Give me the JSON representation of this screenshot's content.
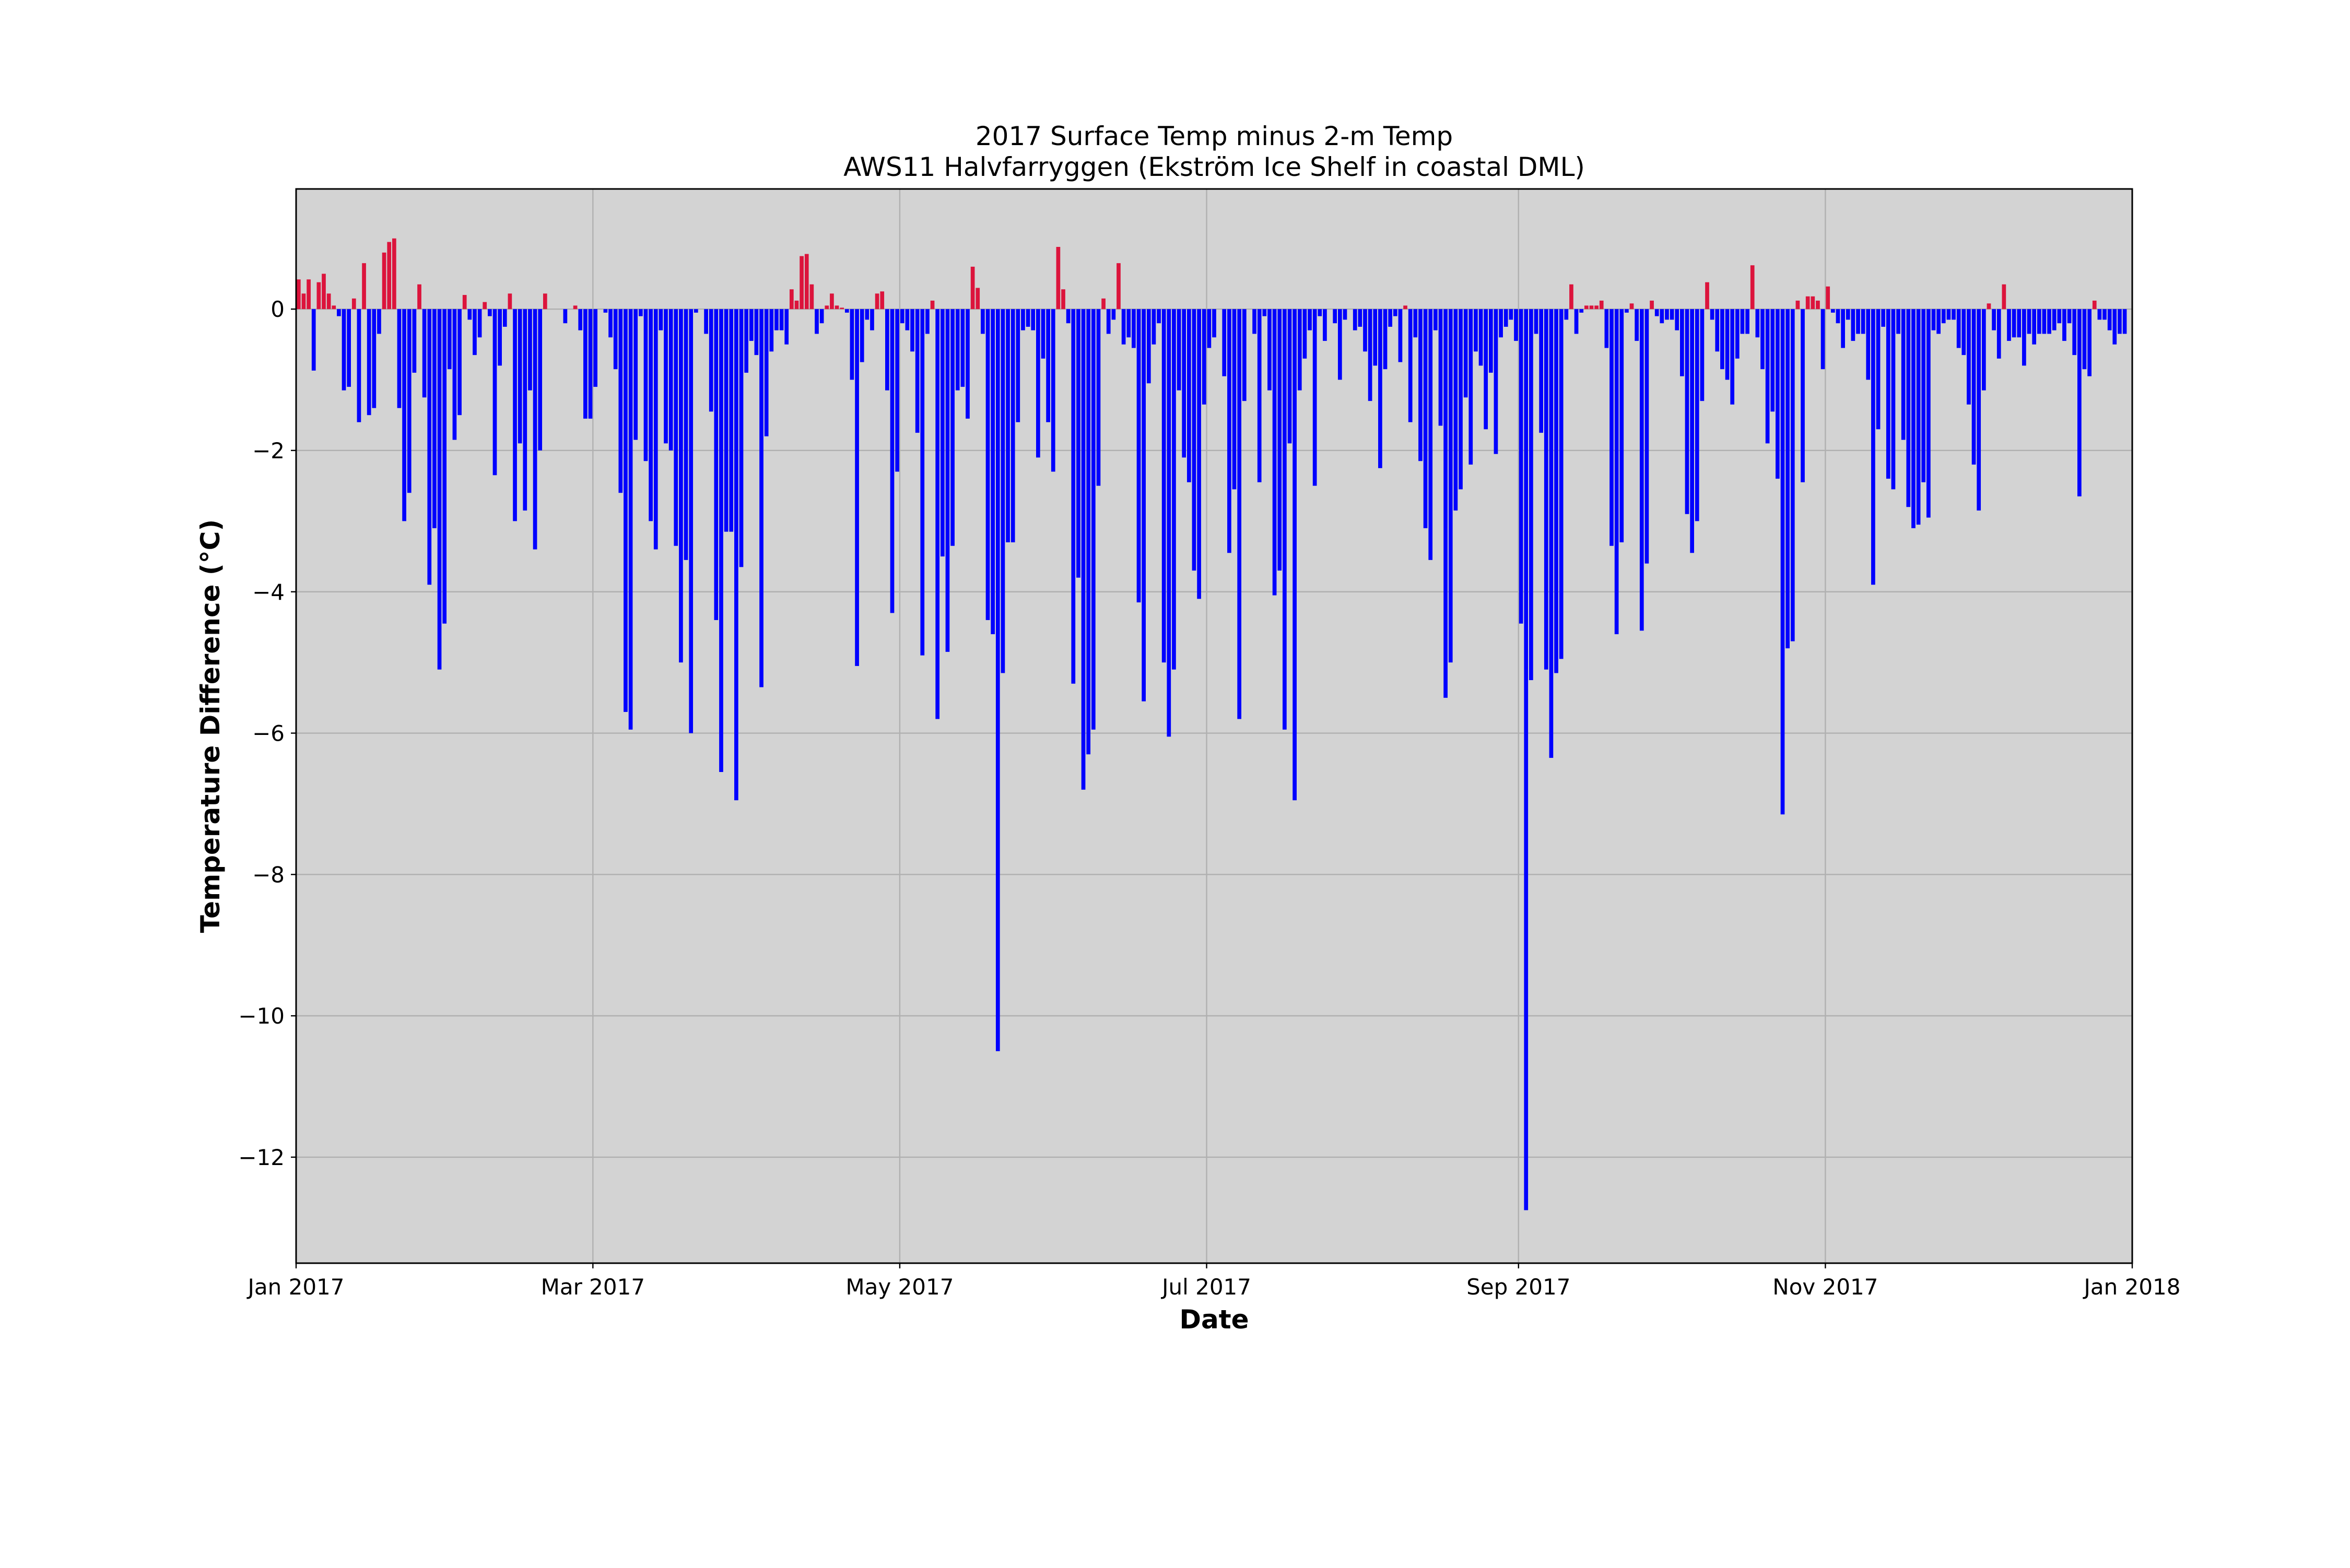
{
  "chart_data": {
    "type": "bar",
    "title": "2017 Surface Temp minus 2-m Temp",
    "subtitle": "AWS11 Halvfarryggen (Ekström Ice Shelf in coastal DML)",
    "xlabel": "Date",
    "ylabel": "Temperature Difference (°C)",
    "x_ticks": [
      {
        "date": "2017-01-01",
        "label": "Jan 2017"
      },
      {
        "date": "2017-03-01",
        "label": "Mar 2017"
      },
      {
        "date": "2017-05-01",
        "label": "May 2017"
      },
      {
        "date": "2017-07-01",
        "label": "Jul 2017"
      },
      {
        "date": "2017-09-01",
        "label": "Sep 2017"
      },
      {
        "date": "2017-11-01",
        "label": "Nov 2017"
      },
      {
        "date": "2018-01-01",
        "label": "Jan 2018"
      }
    ],
    "y_ticks": [
      {
        "value": 0,
        "label": "0"
      },
      {
        "value": -2,
        "label": "−2"
      },
      {
        "value": -4,
        "label": "−4"
      },
      {
        "value": -6,
        "label": "−6"
      },
      {
        "value": -8,
        "label": "−8"
      },
      {
        "value": -10,
        "label": "−10"
      },
      {
        "value": -12,
        "label": "−12"
      }
    ],
    "xlim": [
      "2017-01-01",
      "2018-01-01"
    ],
    "ylim": [
      -13.5,
      1.7
    ],
    "grid": true,
    "colors": {
      "positive": "#dc143c",
      "negative": "#0000ff",
      "plot_background": "#d3d3d3",
      "grid": "#b0b0b0"
    },
    "series": [
      {
        "start_date": "2017-01-01",
        "interval": "1 day",
        "values": [
          0.42,
          0.22,
          0.42,
          -0.87,
          0.38,
          0.5,
          0.22,
          0.05,
          -0.1,
          -1.15,
          -1.1,
          0.15,
          -1.6,
          0.65,
          -1.5,
          -1.4,
          -0.35,
          0.8,
          0.95,
          1.0,
          -1.4,
          -3.0,
          -2.6,
          -0.9,
          0.35,
          -1.25,
          -3.9,
          -3.1,
          -5.1,
          -4.45,
          -0.85,
          -1.85,
          -1.5,
          0.2,
          -0.15,
          -0.65,
          -0.4,
          0.1,
          -0.1,
          -2.35,
          -0.8,
          -0.25,
          0.22,
          -3.0,
          -1.9,
          -2.85,
          -1.15,
          -3.4,
          -2.0,
          0.22,
          0,
          0,
          0,
          -0.2,
          0,
          0.05,
          -0.3,
          -1.55,
          -1.55,
          -1.1,
          0,
          -0.05,
          -0.4,
          -0.85,
          -2.6,
          -5.7,
          -5.95,
          -1.85,
          -0.1,
          -2.15,
          -3.0,
          -3.4,
          -0.3,
          -1.9,
          -2.0,
          -3.35,
          -5.0,
          -3.55,
          -6.0,
          -0.05,
          0,
          -0.35,
          -1.45,
          -4.4,
          -6.55,
          -3.15,
          -3.15,
          -6.95,
          -3.65,
          -0.9,
          -0.45,
          -0.65,
          -5.35,
          -1.8,
          -0.6,
          -0.3,
          -0.3,
          -0.5,
          0.28,
          0.12,
          0.75,
          0.78,
          0.35,
          -0.35,
          -0.2,
          0.05,
          0.22,
          0.05,
          0.02,
          -0.05,
          -1.0,
          -5.05,
          -0.75,
          -0.15,
          -0.3,
          0.22,
          0.25,
          -1.15,
          -4.3,
          -2.3,
          -0.2,
          -0.3,
          -0.6,
          -1.75,
          -4.9,
          -0.35,
          0.12,
          -5.8,
          -3.5,
          -4.85,
          -3.35,
          -1.15,
          -1.1,
          -1.55,
          0.6,
          0.3,
          -0.35,
          -4.4,
          -4.6,
          -10.5,
          -5.15,
          -3.3,
          -3.3,
          -1.6,
          -0.3,
          -0.25,
          -0.3,
          -2.1,
          -0.7,
          -1.6,
          -2.3,
          0.88,
          0.28,
          -0.2,
          -5.3,
          -3.8,
          -6.8,
          -6.3,
          -5.95,
          -2.5,
          0.15,
          -0.35,
          -0.15,
          0.65,
          -0.5,
          -0.4,
          -0.55,
          -4.15,
          -5.55,
          -1.05,
          -0.5,
          -0.2,
          -5.0,
          -6.05,
          -5.1,
          -1.15,
          -2.1,
          -2.45,
          -3.7,
          -4.1,
          -1.35,
          -0.55,
          -0.4,
          0,
          -0.95,
          -3.45,
          -2.55,
          -5.8,
          -1.3,
          0,
          -0.35,
          -2.45,
          -0.1,
          -1.15,
          -4.05,
          -3.7,
          -5.95,
          -1.9,
          -6.95,
          -1.15,
          -0.7,
          -0.3,
          -2.5,
          -0.1,
          -0.45,
          0,
          -0.2,
          -1.0,
          -0.15,
          0,
          -0.3,
          -0.25,
          -0.6,
          -1.3,
          -0.8,
          -2.25,
          -0.85,
          -0.25,
          -0.1,
          -0.75,
          0.05,
          -1.6,
          -0.4,
          -2.15,
          -3.1,
          -3.55,
          -0.3,
          -1.65,
          -5.5,
          -5.0,
          -2.85,
          -2.55,
          -1.25,
          -2.2,
          -0.6,
          -0.8,
          -1.7,
          -0.9,
          -2.05,
          -0.4,
          -0.25,
          -0.15,
          -0.45,
          -4.45,
          -12.75,
          -5.25,
          -0.35,
          -1.75,
          -5.1,
          -6.35,
          -5.15,
          -4.95,
          -0.15,
          0.35,
          -0.35,
          -0.05,
          0.05,
          0.05,
          0.05,
          0.12,
          -0.55,
          -3.35,
          -4.6,
          -3.3,
          -0.05,
          0.08,
          -0.45,
          -4.55,
          -3.6,
          0.12,
          -0.1,
          -0.2,
          -0.15,
          -0.15,
          -0.3,
          -0.95,
          -2.9,
          -3.45,
          -3.0,
          -1.3,
          0.38,
          -0.15,
          -0.6,
          -0.85,
          -1.0,
          -1.35,
          -0.7,
          -0.35,
          -0.35,
          0.62,
          -0.4,
          -0.85,
          -1.9,
          -1.45,
          -2.4,
          -7.15,
          -4.8,
          -4.7,
          0.12,
          -2.45,
          0.18,
          0.18,
          0.12,
          -0.85,
          0.32,
          -0.05,
          -0.2,
          -0.55,
          -0.15,
          -0.45,
          -0.35,
          -0.35,
          -1.0,
          -3.9,
          -1.7,
          -0.25,
          -2.4,
          -2.55,
          -0.35,
          -1.85,
          -2.8,
          -3.1,
          -3.05,
          -2.45,
          -2.95,
          -0.3,
          -0.35,
          -0.2,
          -0.15,
          -0.15,
          -0.55,
          -0.65,
          -1.35,
          -2.2,
          -2.85,
          -1.15,
          0.08,
          -0.3,
          -0.7,
          0.35,
          -0.45,
          -0.4,
          -0.4,
          -0.8,
          -0.35,
          -0.5,
          -0.35,
          -0.35,
          -0.35,
          -0.3,
          -0.2,
          -0.45,
          -0.2,
          -0.65,
          -2.65,
          -0.85,
          -0.95,
          0.12,
          -0.15,
          -0.15,
          -0.3,
          -0.5,
          -0.35,
          -0.35
        ]
      }
    ]
  }
}
